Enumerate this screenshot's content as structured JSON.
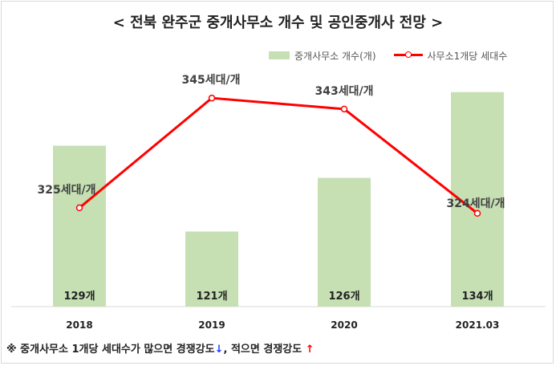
{
  "chart_data": {
    "type": "bar",
    "title": "< 전북 완주군 중개사무소 개수 및 공인중개사 전망 >",
    "categories": [
      "2018",
      "2019",
      "2020",
      "2021.03"
    ],
    "series": [
      {
        "name": "중개사무소 개수(개)",
        "type": "bar",
        "values": [
          129,
          121,
          126,
          134
        ],
        "labels": [
          "129개",
          "121개",
          "126개",
          "134개"
        ],
        "color": "#c6e0b4"
      },
      {
        "name": "사무소1개당 세대수",
        "type": "line",
        "values": [
          325,
          345,
          343,
          324
        ],
        "labels": [
          "325세대/개",
          "345세대/개",
          "343세대/개",
          "324세대/개"
        ],
        "color": "#ff0000"
      }
    ],
    "bar_axis_range": [
      114,
      136
    ],
    "line_axis_range": [
      307,
      350
    ],
    "legend_position": "top-right",
    "grid": false
  },
  "footnote": {
    "text1": "※ 중개사무소 1개당 세대수가 많으면 경쟁강도",
    "arrow_down": "↓",
    "text2": ", 적으면 경쟁강도 ",
    "arrow_up": "↑"
  }
}
